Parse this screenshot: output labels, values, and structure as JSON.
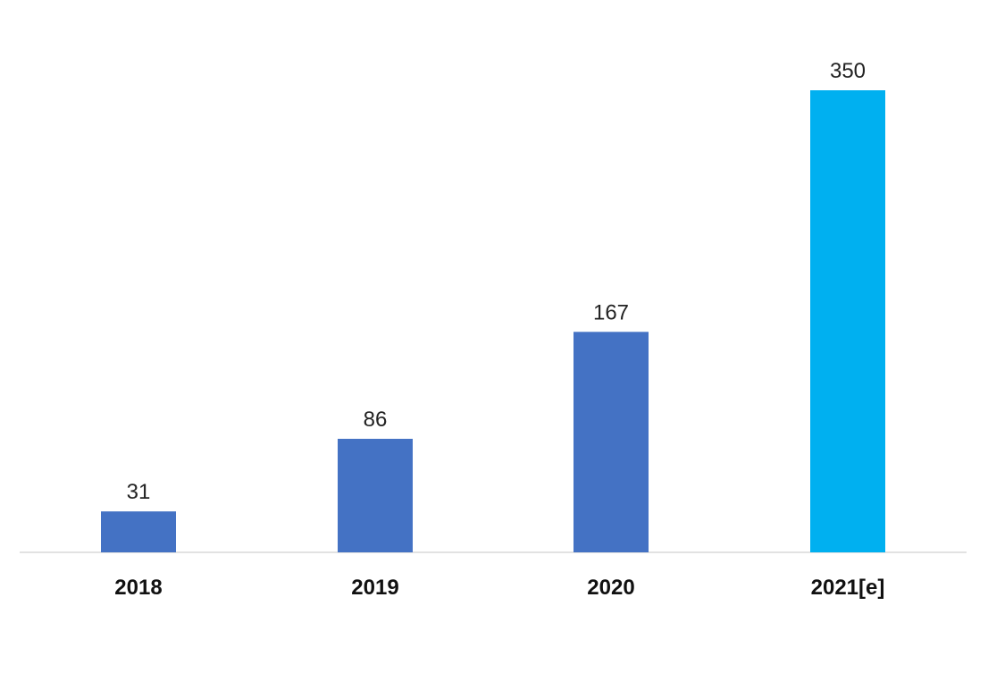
{
  "chart_data": {
    "type": "bar",
    "title": "",
    "xlabel": "",
    "ylabel": "",
    "categories": [
      "2018",
      "2019",
      "2020",
      "2021[e]"
    ],
    "values": [
      31,
      86,
      167,
      350
    ],
    "ylim": [
      0,
      350
    ],
    "grid": false,
    "legend": "none",
    "colors": [
      "#4472C4",
      "#4472C4",
      "#4472C4",
      "#00B0F0"
    ],
    "axis_color": "#D9D9D9"
  }
}
